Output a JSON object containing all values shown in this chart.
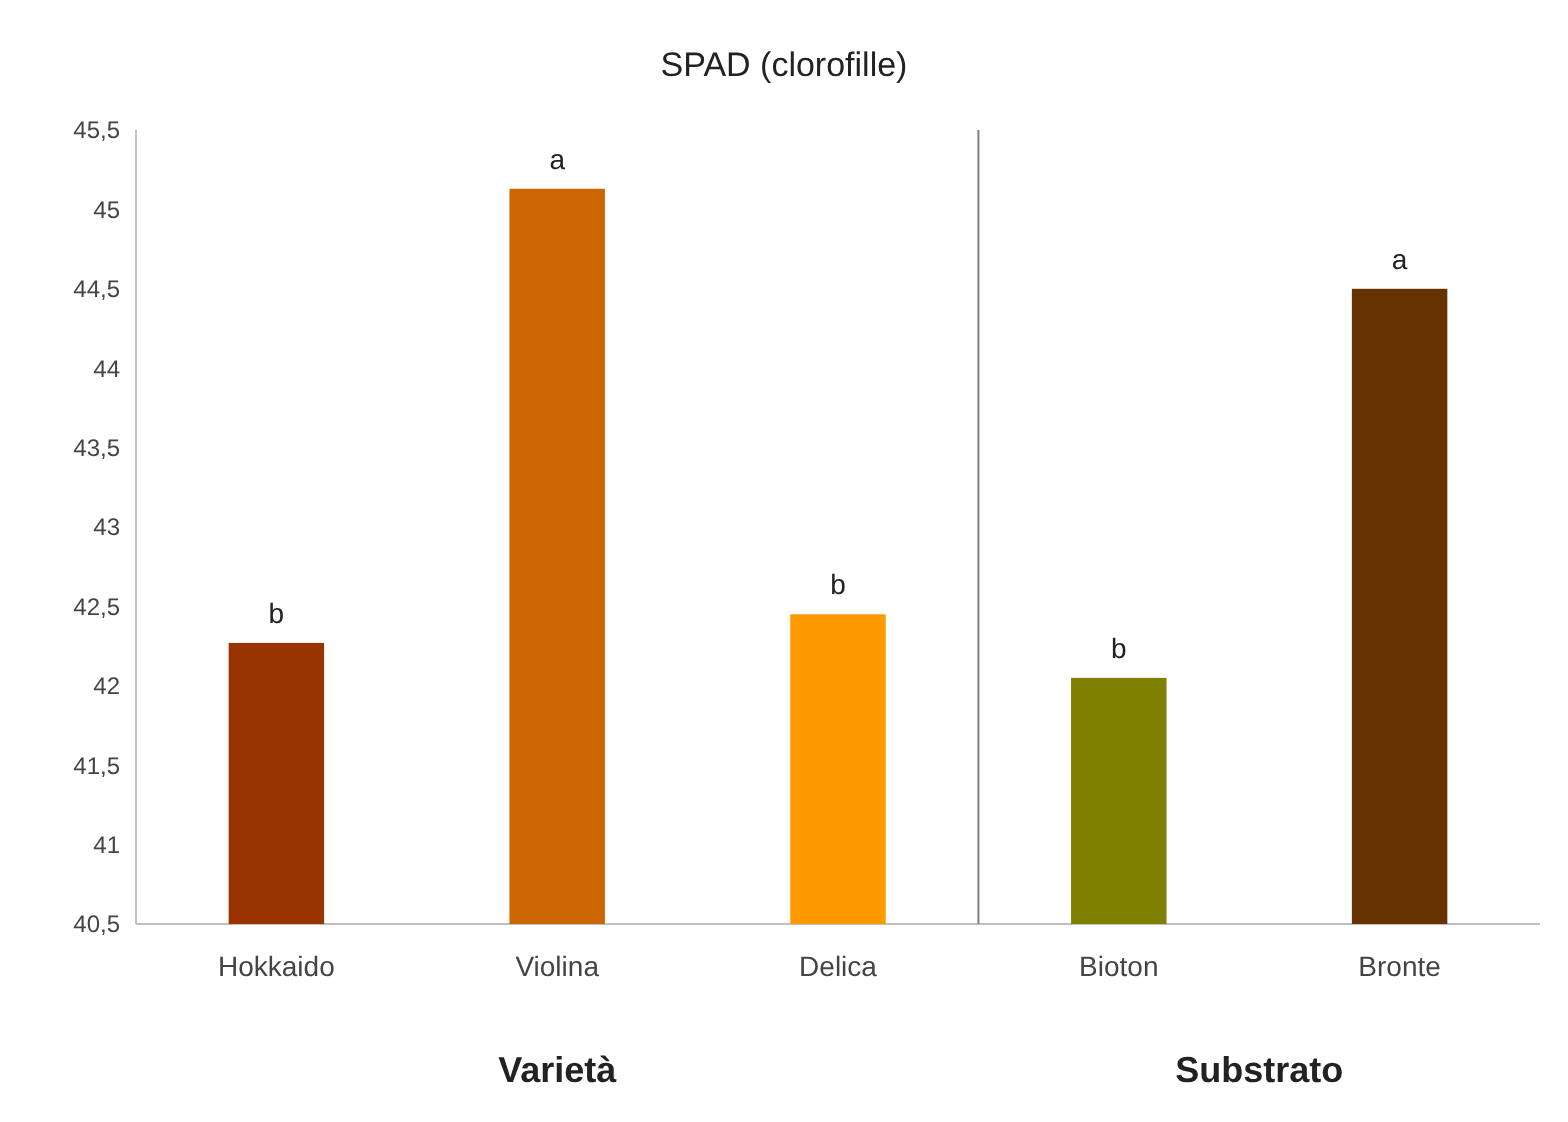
{
  "chart_data": {
    "type": "bar",
    "title": "SPAD (clorofille)",
    "categories": [
      "Hokkaido",
      "Violina",
      "Delica",
      "Bioton",
      "Bronte"
    ],
    "values": [
      42.27,
      45.13,
      42.45,
      42.05,
      44.5
    ],
    "colors": [
      "#993300",
      "#cc6600",
      "#ff9900",
      "#808000",
      "#663300"
    ],
    "ylim": [
      40.5,
      45.5
    ],
    "yticks": [
      {
        "value": 40.5,
        "label": "40,5"
      },
      {
        "value": 41,
        "label": "41"
      },
      {
        "value": 41.5,
        "label": "41,5"
      },
      {
        "value": 42,
        "label": "42"
      },
      {
        "value": 42.5,
        "label": "42,5"
      },
      {
        "value": 43,
        "label": "43"
      },
      {
        "value": 43.5,
        "label": "43,5"
      },
      {
        "value": 44,
        "label": "44"
      },
      {
        "value": 44.5,
        "label": "44,5"
      },
      {
        "value": 45,
        "label": "45"
      },
      {
        "value": 45.5,
        "label": "45,5"
      }
    ],
    "grid": false,
    "annotations": [
      {
        "text": "b",
        "x": "Hokkaido",
        "y": 42.27
      },
      {
        "text": "a",
        "x": "Violina",
        "y": 45.13
      },
      {
        "text": "b",
        "x": "Delica",
        "y": 42.45
      },
      {
        "text": "b",
        "x": "Bioton",
        "y": 42.05
      },
      {
        "text": "a",
        "x": "Bronte",
        "y": 44.5
      },
      "Varietà",
      "Substrato"
    ]
  }
}
